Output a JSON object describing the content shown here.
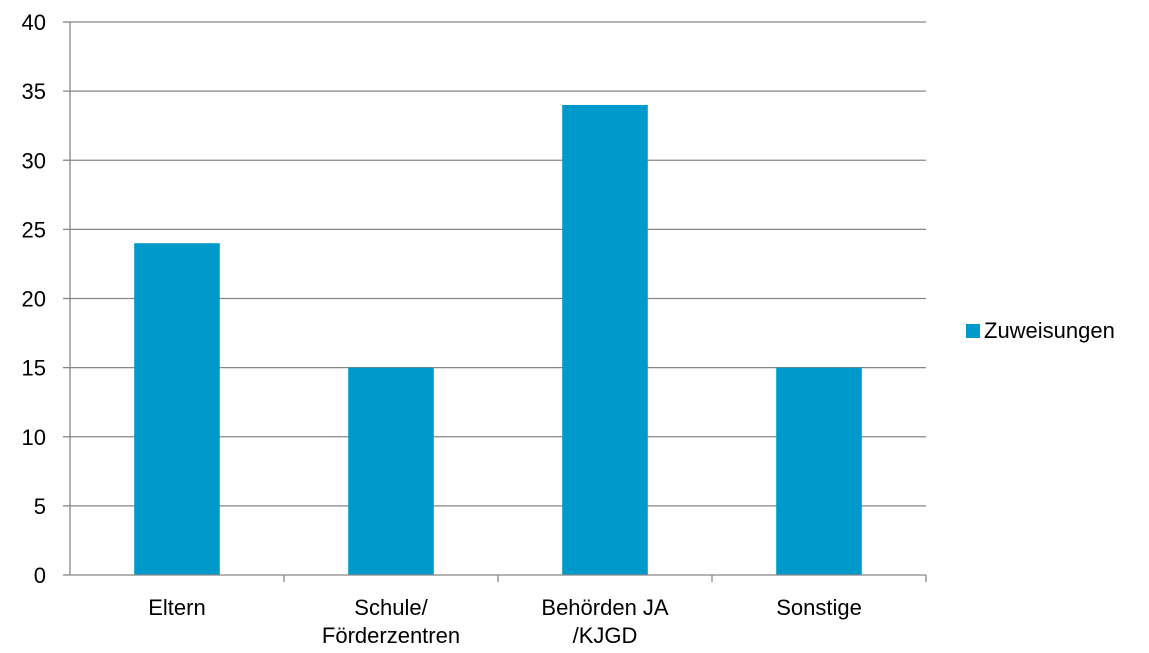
{
  "chart_data": {
    "type": "bar",
    "categories": [
      "Eltern",
      "Schule/\nFörderzentren",
      "Behörden JA\n/KJGD",
      "Sonstige"
    ],
    "series": [
      {
        "name": "Zuweisungen",
        "values": [
          24,
          15,
          34,
          15
        ],
        "color": "#0099CC"
      }
    ],
    "title": "",
    "xlabel": "",
    "ylabel": "",
    "ylim": [
      0,
      40
    ],
    "yticks": [
      0,
      5,
      10,
      15,
      20,
      25,
      30,
      35,
      40
    ],
    "grid": true,
    "legend": "right"
  }
}
